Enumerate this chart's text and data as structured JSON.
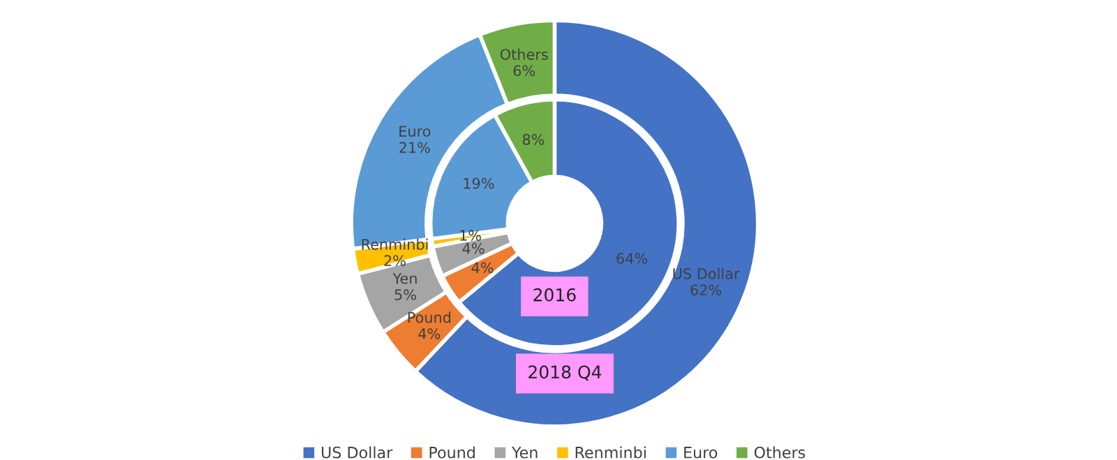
{
  "chart_data": {
    "type": "donut",
    "categories": [
      "US Dollar",
      "Pound",
      "Yen",
      "Renminbi",
      "Euro",
      "Others"
    ],
    "colors": [
      "#4472c4",
      "#ed7d31",
      "#a5a5a5",
      "#ffc000",
      "#5b9bd5",
      "#70ad47"
    ],
    "series": [
      {
        "name": "2016",
        "values": [
          64,
          4,
          4,
          1,
          19,
          8
        ],
        "value_labels": [
          "64%",
          "4%",
          "4%",
          "1%",
          "19%",
          "8%"
        ]
      },
      {
        "name": "2018 Q4",
        "values": [
          62,
          4,
          5,
          2,
          21,
          6
        ],
        "value_labels": [
          "US Dollar\n62%",
          "Pound\n4%",
          "Yen\n5%",
          "Renminbi\n2%",
          "Euro\n21%",
          "Others\n6%"
        ]
      }
    ],
    "legend": "bottom"
  }
}
